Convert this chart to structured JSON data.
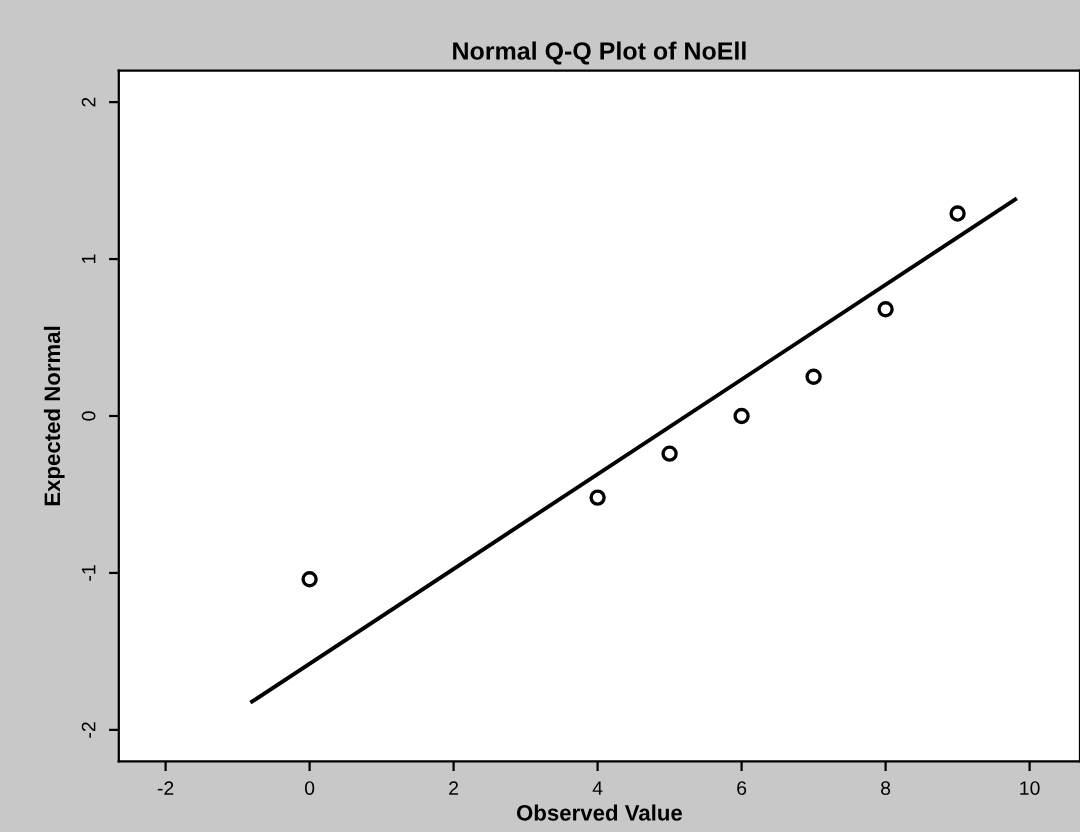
{
  "chart_data": {
    "type": "scatter",
    "title": "Normal Q-Q Plot of NoEll",
    "xlabel": "Observed Value",
    "ylabel": "Expected Normal",
    "x": [
      0,
      4,
      5,
      6,
      7,
      8,
      9
    ],
    "series": [
      {
        "color": "#000000",
        "marker": "circle",
        "values": [
          -1.04,
          -0.52,
          -0.24,
          0.0,
          0.25,
          0.68,
          1.29
        ]
      },
      {
        "type": "line",
        "color": "#000000",
        "x": [
          -0.8,
          9.8
        ],
        "values": [
          -1.82,
          1.38
        ]
      }
    ],
    "xlim": [
      -2.65,
      10.7
    ],
    "ylim": [
      -2.2,
      2.2
    ],
    "xticks": [
      -2,
      0,
      2,
      4,
      6,
      8,
      10
    ],
    "yticks": [
      -2,
      -1,
      0,
      1,
      2
    ],
    "grid": false,
    "legend": false
  }
}
